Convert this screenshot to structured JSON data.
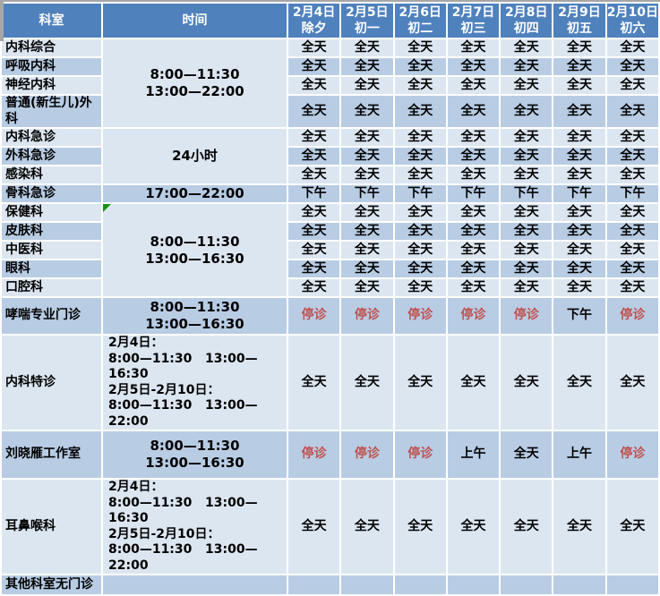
{
  "colors": {
    "header_bg": "#4F81BD",
    "header_text": "#FFFFFF",
    "row_light": "#DCE6F1",
    "row_dark": "#B8CCE4",
    "closed_text": "#C0504D",
    "gridline": "#FFFFFF",
    "corner_marker_green": "#169216",
    "edge_gray": "#A6A6A6"
  },
  "statuses": {
    "all_day": "全天",
    "morning": "上午",
    "afternoon": "下午",
    "closed": "停诊"
  },
  "table": {
    "header": {
      "dept": "科室",
      "time": "时间",
      "dates": [
        "2月4日\n除夕",
        "2月5日\n初一",
        "2月6日\n初二",
        "2月7日\n初三",
        "2月8日\n初四",
        "2月9日\n初五",
        "2月10日\n初六"
      ]
    },
    "groups": [
      {
        "time": "8:00—11:30\n13:00—22:00",
        "rows": [
          {
            "dept": "内科综合",
            "cells": [
              "全天",
              "全天",
              "全天",
              "全天",
              "全天",
              "全天",
              "全天"
            ]
          },
          {
            "dept": "呼吸内科",
            "cells": [
              "全天",
              "全天",
              "全天",
              "全天",
              "全天",
              "全天",
              "全天"
            ]
          },
          {
            "dept": "神经内科",
            "cells": [
              "全天",
              "全天",
              "全天",
              "全天",
              "全天",
              "全天",
              "全天"
            ]
          },
          {
            "dept": "普通(新生儿)外科",
            "cells": [
              "全天",
              "全天",
              "全天",
              "全天",
              "全天",
              "全天",
              "全天"
            ]
          }
        ]
      },
      {
        "time": "24小时",
        "rows": [
          {
            "dept": "内科急诊",
            "cells": [
              "全天",
              "全天",
              "全天",
              "全天",
              "全天",
              "全天",
              "全天"
            ]
          },
          {
            "dept": "外科急诊",
            "cells": [
              "全天",
              "全天",
              "全天",
              "全天",
              "全天",
              "全天",
              "全天"
            ]
          },
          {
            "dept": "感染科",
            "cells": [
              "全天",
              "全天",
              "全天",
              "全天",
              "全天",
              "全天",
              "全天"
            ]
          }
        ]
      },
      {
        "time": "17:00—22:00",
        "rows": [
          {
            "dept": "骨科急诊",
            "cells": [
              "下午",
              "下午",
              "下午",
              "下午",
              "下午",
              "下午",
              "下午"
            ]
          }
        ]
      },
      {
        "time": "8:00—11:30\n13:00—16:30",
        "marker": true,
        "rows": [
          {
            "dept": "保健科",
            "cells": [
              "全天",
              "全天",
              "全天",
              "全天",
              "全天",
              "全天",
              "全天"
            ]
          },
          {
            "dept": "皮肤科",
            "cells": [
              "全天",
              "全天",
              "全天",
              "全天",
              "全天",
              "全天",
              "全天"
            ]
          },
          {
            "dept": "中医科",
            "cells": [
              "全天",
              "全天",
              "全天",
              "全天",
              "全天",
              "全天",
              "全天"
            ]
          },
          {
            "dept": "眼科",
            "cells": [
              "全天",
              "全天",
              "全天",
              "全天",
              "全天",
              "全天",
              "全天"
            ]
          },
          {
            "dept": "口腔科",
            "cells": [
              "全天",
              "全天",
              "全天",
              "全天",
              "全天",
              "全天",
              "全天"
            ]
          }
        ]
      },
      {
        "time": "8:00—11:30\n13:00—16:30",
        "rows": [
          {
            "dept": "哮喘专业门诊",
            "cells": [
              "停诊",
              "停诊",
              "停诊",
              "停诊",
              "停诊",
              "下午",
              "停诊"
            ]
          }
        ]
      },
      {
        "time": "2月4日：\n8:00—11:30   13:00—16:30\n2月5日-2月10日：\n8:00—11:30   13:00—22:00",
        "align": "left",
        "rows": [
          {
            "dept": "内科特诊",
            "cells": [
              "全天",
              "全天",
              "全天",
              "全天",
              "全天",
              "全天",
              "全天"
            ]
          }
        ]
      },
      {
        "time": "8:00—11:30\n13:00—16:30",
        "rows": [
          {
            "dept": "刘晓雁工作室",
            "cells": [
              "停诊",
              "停诊",
              "停诊",
              "上午",
              "全天",
              "上午",
              "停诊"
            ]
          }
        ]
      },
      {
        "time": "2月4日：\n8:00—11:30   13:00—16:30\n2月5日-2月10日：\n8:00—11:30   13:00—22:00",
        "align": "left",
        "rows": [
          {
            "dept": "耳鼻喉科",
            "cells": [
              "全天",
              "全天",
              "全天",
              "全天",
              "全天",
              "全天",
              "全天"
            ]
          }
        ]
      },
      {
        "time": "",
        "rows": [
          {
            "dept": "其他科室无门诊",
            "cells": [
              "",
              "",
              "",
              "",
              "",
              "",
              ""
            ]
          }
        ]
      }
    ]
  }
}
